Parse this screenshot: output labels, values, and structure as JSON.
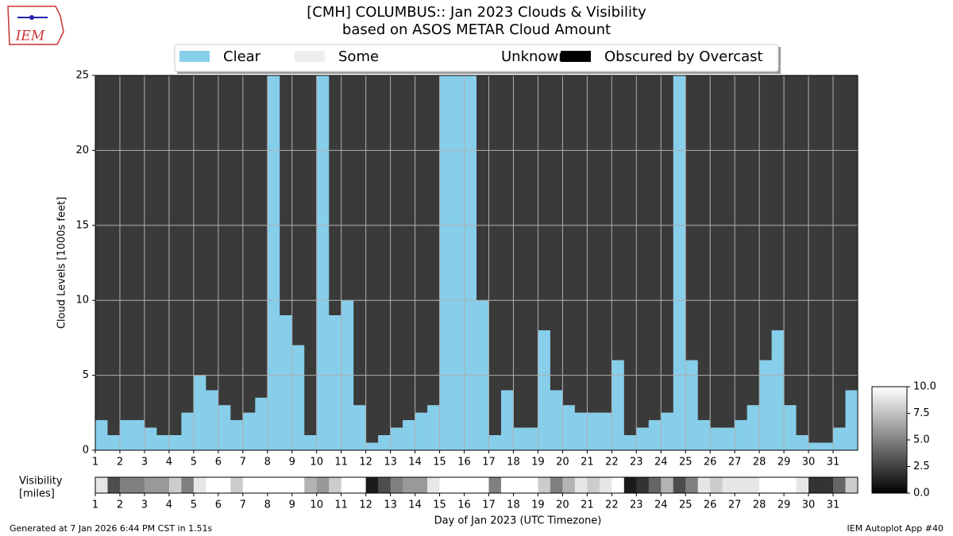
{
  "logo_text": "IEM",
  "footer_left": "Generated at 7 Jan 2026 6:44 PM CST in 1.51s",
  "footer_right": "IEM Autoplot App #40",
  "chart_data": [
    {
      "type": "step-area",
      "title": "[CMH] COLUMBUS:: Jan 2023 Clouds & Visibility",
      "subtitle": "based on ASOS METAR Cloud Amount",
      "ylabel": "Cloud Levels [1000s feet]",
      "xlabel": "Day of Jan 2023 (UTC Timezone)",
      "legend": [
        {
          "name": "Clear",
          "color": "#87ceeb"
        },
        {
          "name": "Some",
          "color": "#eeeeee"
        },
        {
          "name": "Unknown",
          "color": "#ffffff"
        },
        {
          "name": "Obscured by Overcast",
          "color": "#000000"
        }
      ],
      "overcast_color": "#3a3a3a",
      "grid": true,
      "x": [
        1,
        1.5,
        2,
        2.5,
        3,
        3.5,
        4,
        4.5,
        5,
        5.5,
        6,
        6.5,
        7,
        7.5,
        8,
        8.5,
        9,
        9.5,
        10,
        10.5,
        11,
        11.5,
        12,
        12.5,
        13,
        13.5,
        14,
        14.5,
        15,
        15.5,
        16,
        16.5,
        17,
        17.5,
        18,
        18.5,
        19,
        19.5,
        20,
        20.5,
        21,
        21.5,
        22,
        22.5,
        23,
        23.5,
        24,
        24.5,
        25,
        25.5,
        26,
        26.5,
        27,
        27.5,
        28,
        28.5,
        29,
        29.5,
        30,
        30.5,
        31,
        31.5
      ],
      "values": [
        2,
        1,
        2,
        2,
        1.5,
        1,
        1,
        2.5,
        5,
        4,
        3,
        2,
        2.5,
        3.5,
        25,
        9,
        7,
        1,
        25,
        9,
        10,
        3,
        0.5,
        1,
        1.5,
        2,
        2.5,
        3,
        25,
        25,
        25,
        10,
        1,
        4,
        1.5,
        1.5,
        8,
        4,
        3,
        2.5,
        2.5,
        2.5,
        6,
        1,
        1.5,
        2,
        2.5,
        25,
        6,
        2,
        1.5,
        1.5,
        2,
        3,
        6,
        8,
        3,
        1,
        0.5,
        0.5,
        1.5,
        4
      ],
      "xlim": [
        1,
        32
      ],
      "xticks": [
        1,
        2,
        3,
        4,
        5,
        6,
        7,
        8,
        9,
        10,
        11,
        12,
        13,
        14,
        15,
        16,
        17,
        18,
        19,
        20,
        21,
        22,
        23,
        24,
        25,
        26,
        27,
        28,
        29,
        30,
        31
      ],
      "ylim": [
        0,
        25
      ],
      "yticks": [
        0,
        5,
        10,
        15,
        20,
        25
      ]
    },
    {
      "type": "heatmap",
      "ylabel": [
        "Visibility",
        "[miles]"
      ],
      "x": [
        1,
        1.5,
        2,
        2.5,
        3,
        3.5,
        4,
        4.5,
        5,
        5.5,
        6,
        6.5,
        7,
        7.5,
        8,
        8.5,
        9,
        9.5,
        10,
        10.5,
        11,
        11.5,
        12,
        12.5,
        13,
        13.5,
        14,
        14.5,
        15,
        15.5,
        16,
        16.5,
        17,
        17.5,
        18,
        18.5,
        19,
        19.5,
        20,
        20.5,
        21,
        21.5,
        22,
        22.5,
        23,
        23.5,
        24,
        24.5,
        25,
        25.5,
        26,
        26.5,
        27,
        27.5,
        28,
        28.5,
        29,
        29.5,
        30,
        30.5,
        31,
        31.5
      ],
      "values": [
        9,
        3,
        5,
        5,
        6,
        6,
        8,
        5,
        9,
        10,
        10,
        8,
        10,
        10,
        10,
        10,
        10,
        7,
        6,
        8,
        10,
        10,
        1,
        3,
        5,
        6,
        6,
        9,
        10,
        10,
        10,
        10,
        5,
        10,
        10,
        10,
        8,
        5,
        7,
        9,
        8,
        9,
        10,
        1,
        2,
        4,
        7,
        3,
        5,
        9,
        8,
        9,
        9,
        9,
        10,
        10,
        10,
        9,
        2,
        2,
        4,
        8
      ],
      "xlim": [
        1,
        32
      ],
      "xticks": [
        1,
        2,
        3,
        4,
        5,
        6,
        7,
        8,
        9,
        10,
        11,
        12,
        13,
        14,
        15,
        16,
        17,
        18,
        19,
        20,
        21,
        22,
        23,
        24,
        25,
        26,
        27,
        28,
        29,
        30,
        31
      ],
      "clim": [
        0,
        10
      ],
      "cticks": [
        {
          "value": 0,
          "label": "0.0"
        },
        2.5,
        {
          "value": 5,
          "label": "5.0"
        },
        7.5,
        {
          "value": 10,
          "label": "10.0"
        }
      ]
    }
  ]
}
